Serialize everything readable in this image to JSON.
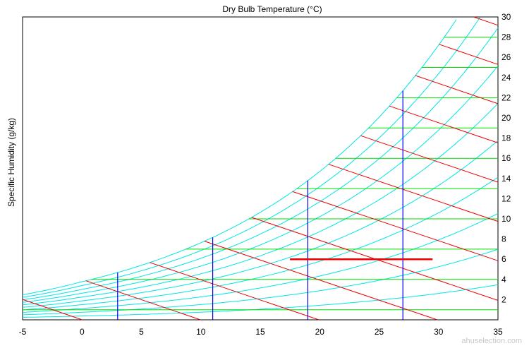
{
  "chart_data": {
    "type": "line",
    "chart_kind": "psychrometric chart",
    "title": "Dry Bulb Temperature (°C)",
    "xlabel": "",
    "ylabel": "Specific Humidity (g/kg)",
    "xlim": [
      -5,
      35
    ],
    "ylim": [
      0,
      30
    ],
    "x_ticks": [
      "-5",
      "0",
      "5",
      "10",
      "15",
      "20",
      "25",
      "30",
      "35"
    ],
    "y_ticks": [
      "2",
      "4",
      "6",
      "8",
      "10",
      "12",
      "14",
      "16",
      "18",
      "20",
      "22",
      "24",
      "26",
      "28",
      "30"
    ],
    "y_axis_position": "right",
    "grid": false,
    "legend": "none",
    "colors": {
      "relative_humidity_curves": "#00e5e5",
      "humidity_grid_lines": "#00dd00",
      "enthalpy_lines": "#ee0000",
      "dry_bulb_markers": "#0000ee",
      "process_line": "#ee0000"
    },
    "relative_humidity_percent": [
      10,
      20,
      30,
      40,
      50,
      60,
      70,
      80,
      90,
      100
    ],
    "specific_humidity_lines": [
      1,
      4,
      7,
      10,
      13,
      16,
      19,
      22,
      25,
      28
    ],
    "enthalpy_lines_kJ_per_kg": [
      0,
      10,
      20,
      30,
      40,
      50,
      60,
      70,
      80,
      90,
      100,
      110
    ],
    "dry_bulb_markers_C": [
      3,
      11,
      19,
      27
    ],
    "process_line": {
      "x": [
        17.5,
        29.5
      ],
      "y": [
        6.0,
        6.0
      ]
    }
  },
  "watermark": "ahuselection.com"
}
